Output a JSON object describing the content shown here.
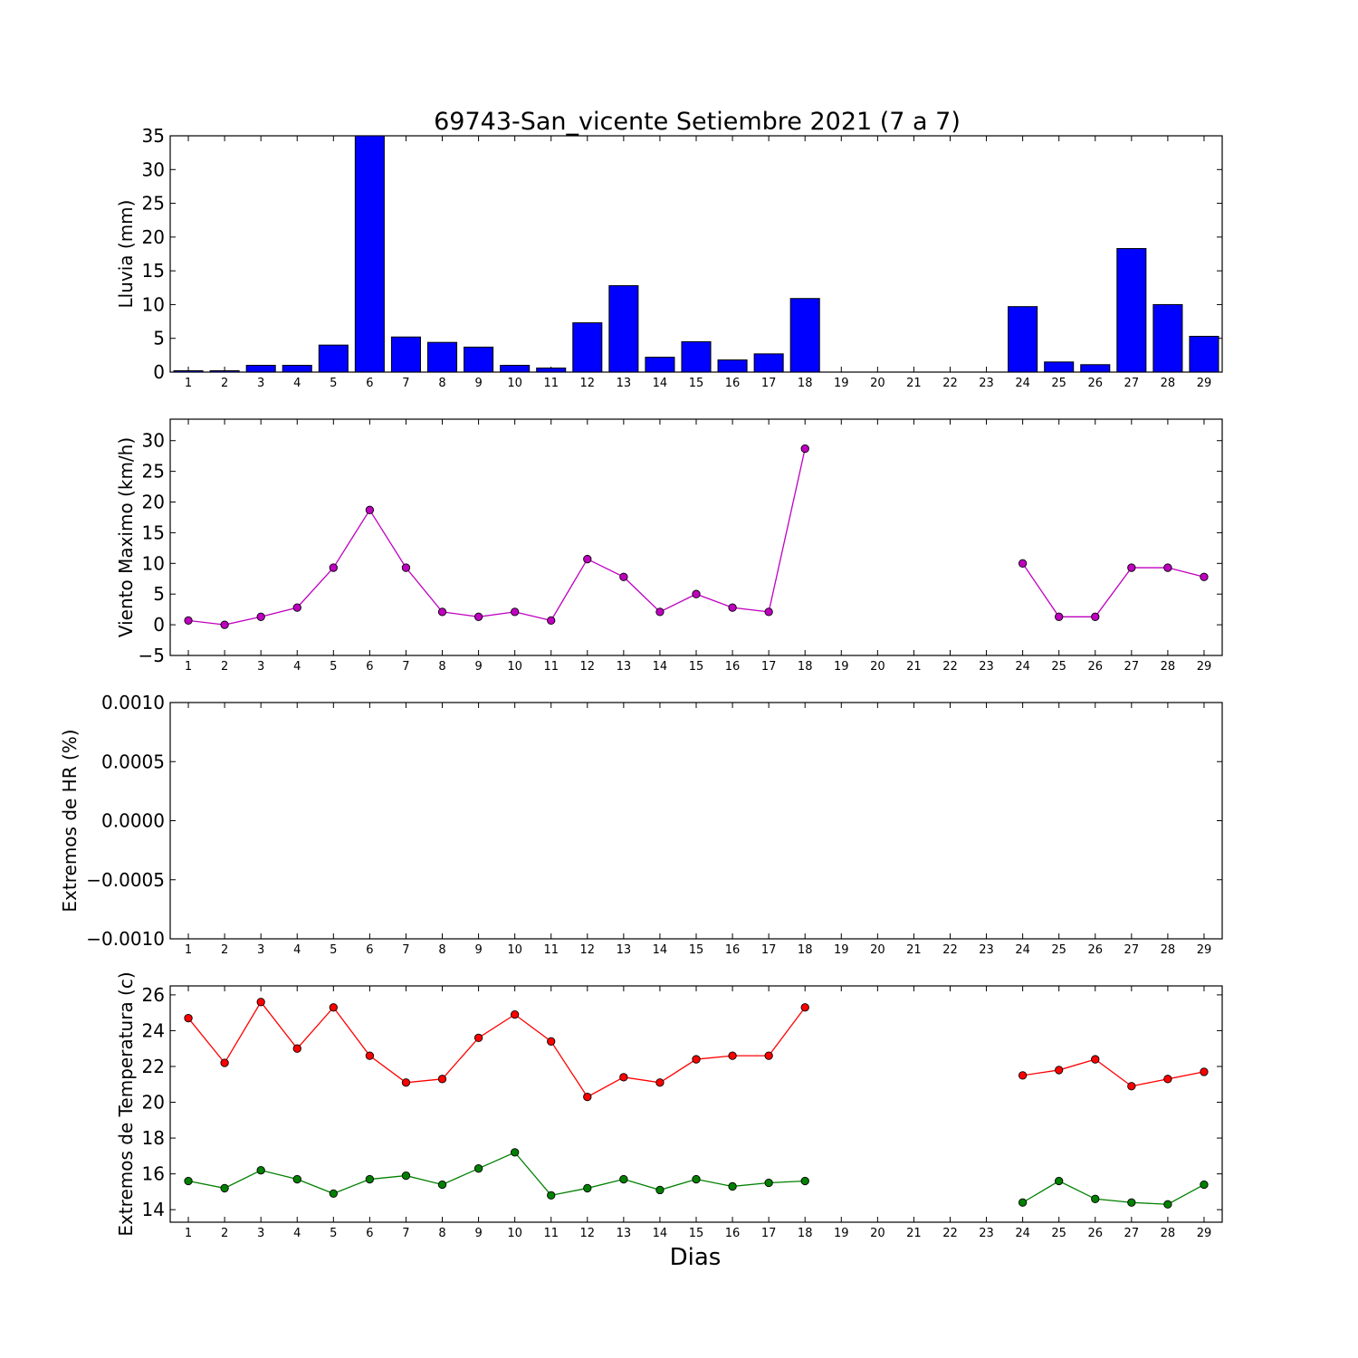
{
  "figure": {
    "title": "69743-San_vicente Setiembre 2021  (7 a 7)",
    "xlabel": "Dias"
  },
  "chart_data": [
    {
      "type": "bar",
      "ylabel": "Lluvia (mm)",
      "ylim": [
        0,
        35
      ],
      "yticks": [
        0,
        5,
        10,
        15,
        20,
        25,
        30,
        35
      ],
      "ytick_labels": [
        "0",
        "5",
        "10",
        "15",
        "20",
        "25",
        "30",
        "35"
      ],
      "categories": [
        "1",
        "2",
        "3",
        "4",
        "5",
        "6",
        "7",
        "8",
        "9",
        "10",
        "11",
        "12",
        "13",
        "14",
        "15",
        "16",
        "17",
        "18",
        "19",
        "20",
        "21",
        "22",
        "23",
        "24",
        "25",
        "26",
        "27",
        "28",
        "29"
      ],
      "values": [
        0.2,
        0.2,
        1.0,
        1.0,
        4.0,
        35.0,
        5.2,
        4.4,
        3.7,
        1.0,
        0.6,
        7.3,
        12.8,
        2.2,
        4.5,
        1.8,
        2.7,
        10.9,
        0,
        0,
        0,
        0,
        0,
        9.7,
        1.5,
        1.1,
        18.3,
        10.0,
        5.3
      ],
      "color": "#0000ff"
    },
    {
      "type": "line",
      "ylabel": "Viento Maximo (km/h)",
      "ylim": [
        -5,
        33.5
      ],
      "yticks": [
        -5,
        0,
        5,
        10,
        15,
        20,
        25,
        30
      ],
      "ytick_labels": [
        "−5",
        "0",
        "5",
        "10",
        "15",
        "20",
        "25",
        "30"
      ],
      "categories": [
        "1",
        "2",
        "3",
        "4",
        "5",
        "6",
        "7",
        "8",
        "9",
        "10",
        "11",
        "12",
        "13",
        "14",
        "15",
        "16",
        "17",
        "18",
        "19",
        "20",
        "21",
        "22",
        "23",
        "24",
        "25",
        "26",
        "27",
        "28",
        "29"
      ],
      "series": [
        {
          "values": [
            0.7,
            0.0,
            1.3,
            2.8,
            9.3,
            18.7,
            9.3,
            2.1,
            1.3,
            2.1,
            0.7,
            10.7,
            7.8,
            2.1,
            5.0,
            2.8,
            2.1,
            28.7,
            null,
            null,
            null,
            null,
            null,
            10.0,
            1.3,
            1.3,
            9.3,
            9.3,
            7.8
          ],
          "color": "#bf00bf"
        }
      ]
    },
    {
      "type": "line",
      "ylabel": "Extremos de HR (%)",
      "ylim": [
        -0.001,
        0.001
      ],
      "yticks": [
        -0.001,
        -0.0005,
        0.0,
        0.0005,
        0.001
      ],
      "ytick_labels": [
        "−0.0010",
        "−0.0005",
        "0.0000",
        "0.0005",
        "0.0010"
      ],
      "categories": [
        "1",
        "2",
        "3",
        "4",
        "5",
        "6",
        "7",
        "8",
        "9",
        "10",
        "11",
        "12",
        "13",
        "14",
        "15",
        "16",
        "17",
        "18",
        "19",
        "20",
        "21",
        "22",
        "23",
        "24",
        "25",
        "26",
        "27",
        "28",
        "29"
      ],
      "series": []
    },
    {
      "type": "line",
      "ylabel": "Extremos de Temperatura (c)",
      "ylim": [
        13.3,
        26.5
      ],
      "yticks": [
        14,
        16,
        18,
        20,
        22,
        24,
        26
      ],
      "ytick_labels": [
        "14",
        "16",
        "18",
        "20",
        "22",
        "24",
        "26"
      ],
      "categories": [
        "1",
        "2",
        "3",
        "4",
        "5",
        "6",
        "7",
        "8",
        "9",
        "10",
        "11",
        "12",
        "13",
        "14",
        "15",
        "16",
        "17",
        "18",
        "19",
        "20",
        "21",
        "22",
        "23",
        "24",
        "25",
        "26",
        "27",
        "28",
        "29"
      ],
      "series": [
        {
          "values": [
            24.7,
            22.2,
            25.6,
            23.0,
            25.3,
            22.6,
            21.1,
            21.3,
            23.6,
            24.9,
            23.4,
            20.3,
            21.4,
            21.1,
            22.4,
            22.6,
            22.6,
            25.3,
            null,
            null,
            null,
            null,
            null,
            21.5,
            21.8,
            22.4,
            20.9,
            21.3,
            21.7
          ],
          "color": "#ff0000"
        },
        {
          "values": [
            15.6,
            15.2,
            16.2,
            15.7,
            14.9,
            15.7,
            15.9,
            15.4,
            16.3,
            17.2,
            14.8,
            15.2,
            15.7,
            15.1,
            15.7,
            15.3,
            15.5,
            15.6,
            null,
            null,
            null,
            null,
            null,
            14.4,
            15.6,
            14.6,
            14.4,
            14.3,
            15.4
          ],
          "color": "#008000"
        }
      ]
    }
  ]
}
